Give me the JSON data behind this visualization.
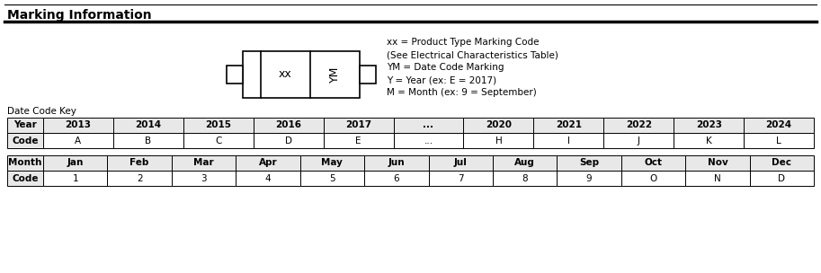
{
  "title": "Marking Information",
  "legend_lines": [
    "xx = Product Type Marking Code",
    "(See Electrical Characteristics Table)",
    "YM = Date Code Marking",
    "Y = Year (ex: E = 2017)",
    "M = Month (ex: 9 = September)"
  ],
  "date_code_key_label": "Date Code Key",
  "year_table_headers": [
    "Year",
    "2013",
    "2014",
    "2015",
    "2016",
    "2017",
    "...",
    "2020",
    "2021",
    "2022",
    "2023",
    "2024"
  ],
  "year_table_codes": [
    "Code",
    "A",
    "B",
    "C",
    "D",
    "E",
    "...",
    "H",
    "I",
    "J",
    "K",
    "L"
  ],
  "month_table_headers": [
    "Month",
    "Jan",
    "Feb",
    "Mar",
    "Apr",
    "May",
    "Jun",
    "Jul",
    "Aug",
    "Sep",
    "Oct",
    "Nov",
    "Dec"
  ],
  "month_table_codes": [
    "Code",
    "1",
    "2",
    "3",
    "4",
    "5",
    "6",
    "7",
    "8",
    "9",
    "O",
    "N",
    "D"
  ],
  "background_color": "#ffffff",
  "header_fill_color": "#e8e8e8",
  "border_color": "#000000",
  "text_color": "#000000",
  "title_fontsize": 10,
  "table_fontsize": 7.5,
  "annotation_fontsize": 7.5
}
